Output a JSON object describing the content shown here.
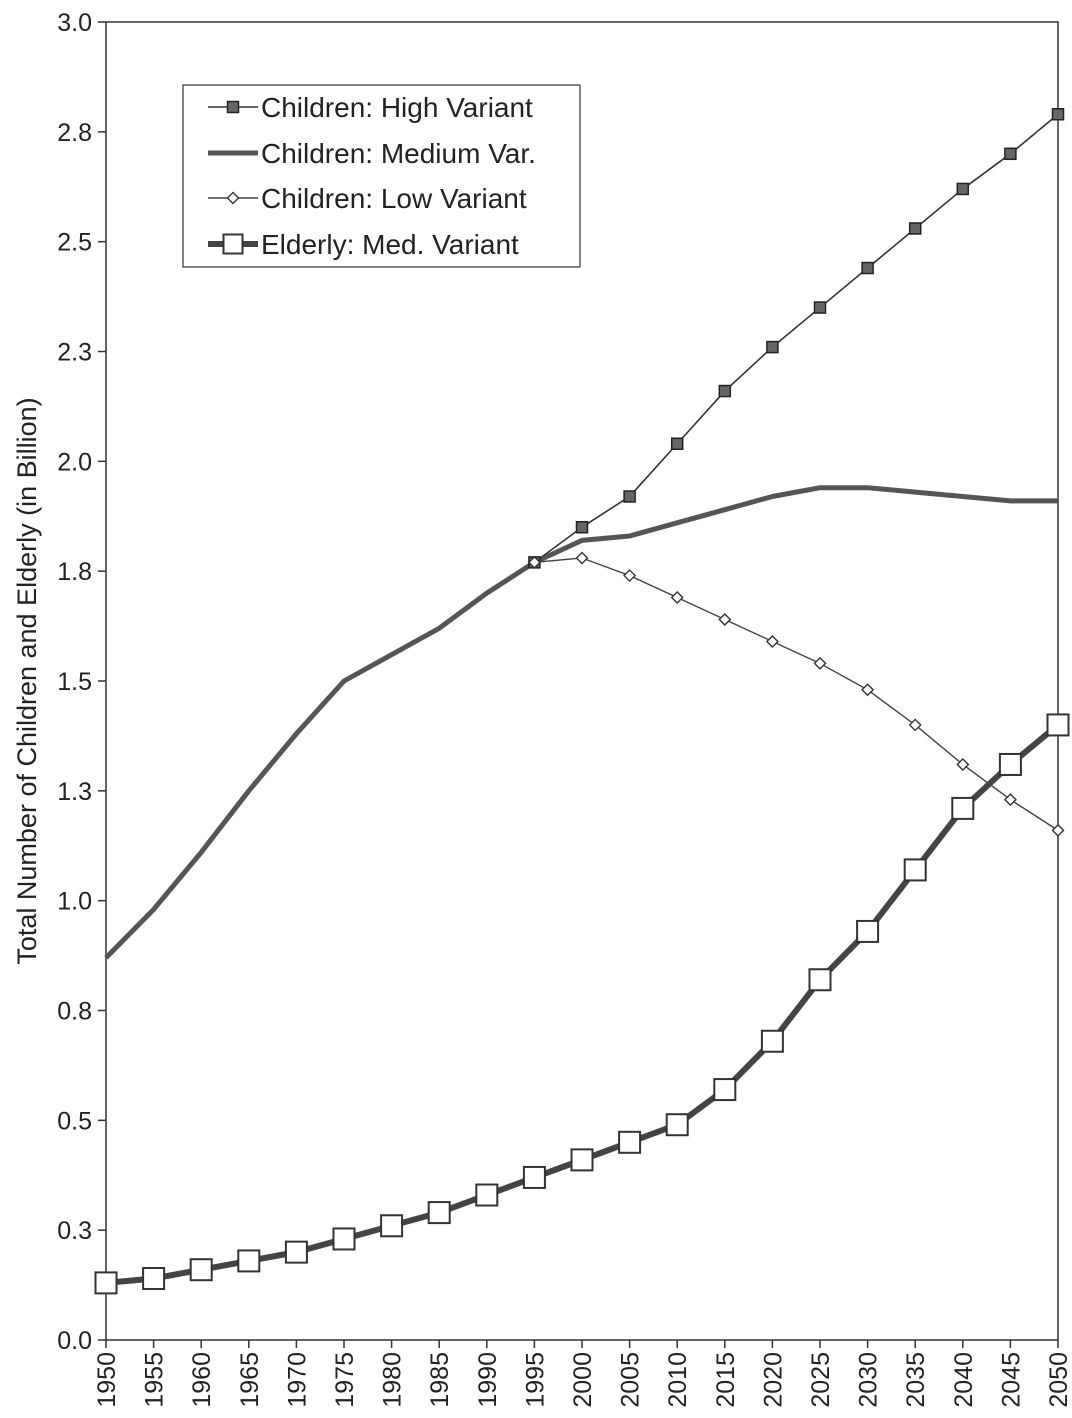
{
  "chart_data": {
    "type": "line",
    "title": "",
    "xlabel": "",
    "ylabel": "Total Number of Children and Elderly (in Billion)",
    "x": [
      1950,
      1955,
      1960,
      1965,
      1970,
      1975,
      1980,
      1985,
      1990,
      1995,
      2000,
      2005,
      2010,
      2015,
      2020,
      2025,
      2030,
      2035,
      2040,
      2045,
      2050
    ],
    "ylim": [
      0,
      3.0
    ],
    "y_ticks": [
      0,
      0.25,
      0.5,
      0.75,
      1.0,
      1.25,
      1.5,
      1.75,
      2.0,
      2.25,
      2.5,
      2.75,
      3.0
    ],
    "y_tick_labels": [
      "0.0",
      "0.3",
      "0.5",
      "0.8",
      "1.0",
      "1.3",
      "1.5",
      "1.8",
      "2.0",
      "2.3",
      "2.5",
      "2.8",
      "3.0"
    ],
    "grid": false,
    "legend_position": "top-left",
    "series": [
      {
        "name": "Children: High Variant",
        "marker": "filled-square",
        "color": "#333333",
        "values": [
          null,
          null,
          null,
          null,
          null,
          null,
          null,
          null,
          null,
          1.77,
          1.85,
          1.92,
          2.04,
          2.16,
          2.26,
          2.35,
          2.44,
          2.53,
          2.62,
          2.7,
          2.79
        ]
      },
      {
        "name": "Children: Medium Var.",
        "marker": "none",
        "color": "#555555",
        "values": [
          0.87,
          0.98,
          1.11,
          1.25,
          1.38,
          1.5,
          1.56,
          1.62,
          1.7,
          1.77,
          1.82,
          1.83,
          1.86,
          1.89,
          1.92,
          1.94,
          1.94,
          1.93,
          1.92,
          1.91,
          1.91
        ]
      },
      {
        "name": "Children: Low Variant",
        "marker": "open-diamond",
        "color": "#444444",
        "values": [
          null,
          null,
          null,
          null,
          null,
          null,
          null,
          null,
          null,
          1.77,
          1.78,
          1.74,
          1.69,
          1.64,
          1.59,
          1.54,
          1.48,
          1.4,
          1.31,
          1.23,
          1.16
        ]
      },
      {
        "name": "Elderly: Med. Variant",
        "marker": "open-square",
        "color": "#444444",
        "values": [
          0.13,
          0.14,
          0.16,
          0.18,
          0.2,
          0.23,
          0.26,
          0.29,
          0.33,
          0.37,
          0.41,
          0.45,
          0.49,
          0.57,
          0.68,
          0.82,
          0.93,
          1.07,
          1.21,
          1.31,
          1.4
        ]
      }
    ]
  }
}
